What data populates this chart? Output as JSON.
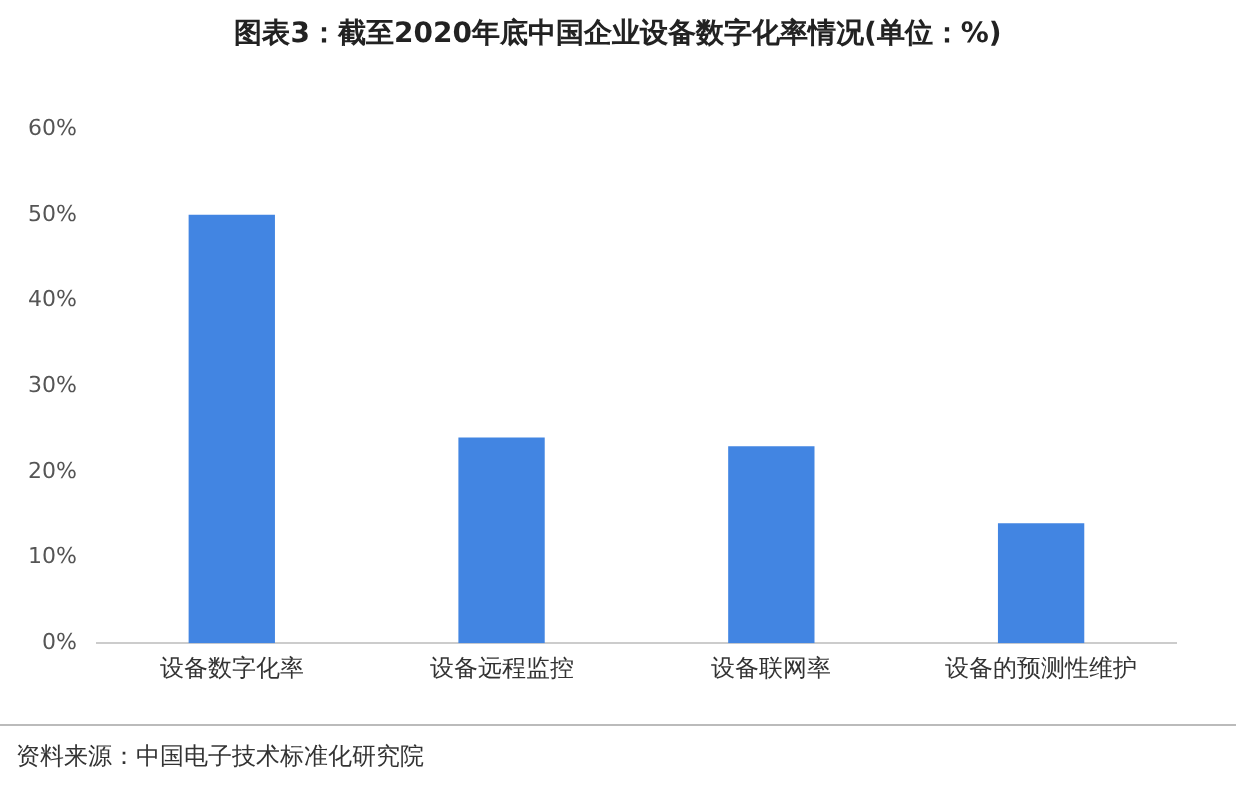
{
  "chart_data": {
    "type": "bar",
    "title": "图表3：截至2020年底中国企业设备数字化率情况(单位：%)",
    "categories": [
      "设备数字化率",
      "设备远程监控",
      "设备联网率",
      "设备的预测性维护"
    ],
    "values": [
      50,
      24,
      23,
      14
    ],
    "color": "#4285e2",
    "ylim": [
      0,
      60
    ],
    "yticks": [
      {
        "value": 0,
        "label": "0%"
      },
      {
        "value": 10,
        "label": "10%"
      },
      {
        "value": 20,
        "label": "20%"
      },
      {
        "value": 30,
        "label": "30%"
      },
      {
        "value": 40,
        "label": "40%"
      },
      {
        "value": 50,
        "label": "50%"
      },
      {
        "value": 60,
        "label": "60%"
      }
    ],
    "grid": false,
    "legend": false,
    "annotations": [
      "资料来源：中国电子技术标准化研究院"
    ]
  }
}
